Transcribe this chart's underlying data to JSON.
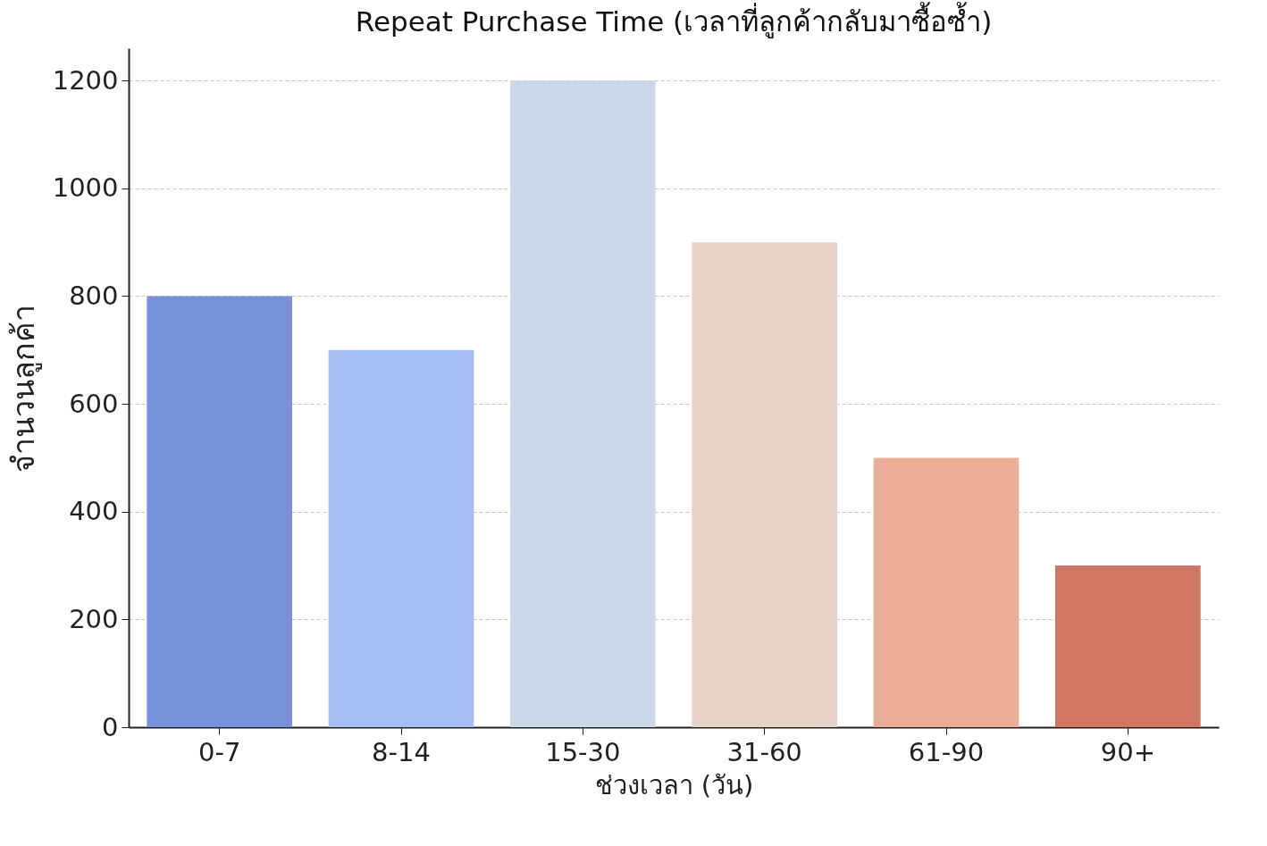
{
  "chart_data": {
    "type": "bar",
    "title": "Repeat Purchase Time (เวลาที่ลูกค้ากลับมาซื้อซ้ำ)",
    "xlabel": "ช่วงเวลา (วัน)",
    "ylabel": "จำนวนลูกค้า",
    "categories": [
      "0-7",
      "8-14",
      "15-30",
      "31-60",
      "61-90",
      "90+"
    ],
    "values": [
      800,
      700,
      1200,
      900,
      500,
      300
    ],
    "colors": [
      "#7891db",
      "#a5bff3",
      "#cbd8ea",
      "#e7d2c6",
      "#e9ae95",
      "#d07662"
    ],
    "ylim": [
      0,
      1260
    ],
    "yticks": [
      0,
      200,
      400,
      600,
      800,
      1000,
      1200
    ],
    "grid": "y"
  }
}
